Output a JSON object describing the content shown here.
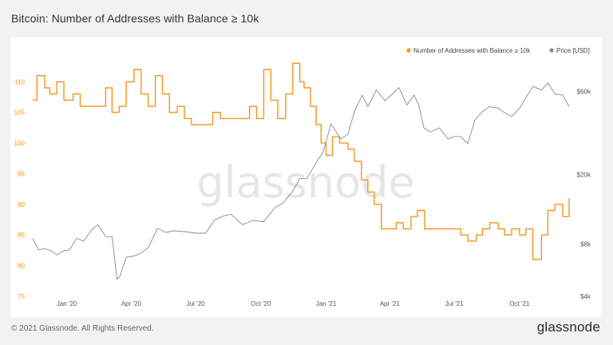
{
  "page": {
    "title": "Bitcoin: Number of Addresses with Balance ≥ 10k",
    "copyright": "© 2021 Glassnode. All Rights Reserved.",
    "logo": "glassnode",
    "watermark": "glassnode"
  },
  "chart_data": {
    "type": "line",
    "title": "Bitcoin: Number of Addresses with Balance ≥ 10k",
    "x_ticks": [
      "Jan '20",
      "Apr '20",
      "Jul '20",
      "Oct '20",
      "Jan '21",
      "Apr '21",
      "Jul '21",
      "Oct '21"
    ],
    "x_tick_dates": [
      "2020-01-01",
      "2020-04-01",
      "2020-07-01",
      "2020-10-01",
      "2021-01-01",
      "2021-04-01",
      "2021-07-01",
      "2021-10-01"
    ],
    "x_range": [
      "2019-11-14",
      "2021-12-10"
    ],
    "y_left": {
      "ticks": [
        "75",
        "80",
        "85",
        "90",
        "95",
        "100",
        "105",
        "110"
      ],
      "range": [
        75,
        112
      ],
      "color": "#f7931a"
    },
    "y_right": {
      "ticks": [
        "$4k",
        "$8k",
        "$20k",
        "$60k"
      ],
      "tick_values": [
        4000,
        8000,
        20000,
        60000
      ],
      "scale": "log",
      "range": [
        4000,
        80000
      ],
      "color": "#555555"
    },
    "grid": false,
    "legend_position": "top-right",
    "series": [
      {
        "name": "Number of Addresses with Balance ≥ 10k",
        "color": "#f7931a",
        "axis": "left",
        "step": true,
        "x": [
          "2019-11-14",
          "2019-11-20",
          "2019-12-01",
          "2019-12-08",
          "2019-12-18",
          "2019-12-28",
          "2020-01-10",
          "2020-01-20",
          "2020-02-01",
          "2020-02-15",
          "2020-02-25",
          "2020-03-05",
          "2020-03-15",
          "2020-03-25",
          "2020-04-05",
          "2020-04-15",
          "2020-04-25",
          "2020-05-05",
          "2020-05-15",
          "2020-05-25",
          "2020-06-05",
          "2020-06-15",
          "2020-06-25",
          "2020-07-05",
          "2020-07-15",
          "2020-07-25",
          "2020-08-05",
          "2020-08-15",
          "2020-08-25",
          "2020-09-05",
          "2020-09-15",
          "2020-09-25",
          "2020-10-05",
          "2020-10-15",
          "2020-10-25",
          "2020-11-05",
          "2020-11-15",
          "2020-11-25",
          "2020-12-01",
          "2020-12-10",
          "2020-12-18",
          "2020-12-25",
          "2021-01-01",
          "2021-01-10",
          "2021-01-20",
          "2021-02-01",
          "2021-02-10",
          "2021-02-20",
          "2021-03-01",
          "2021-03-10",
          "2021-03-20",
          "2021-04-01",
          "2021-04-10",
          "2021-04-20",
          "2021-05-01",
          "2021-05-10",
          "2021-05-20",
          "2021-06-01",
          "2021-06-10",
          "2021-06-20",
          "2021-07-01",
          "2021-07-10",
          "2021-07-20",
          "2021-08-01",
          "2021-08-10",
          "2021-08-20",
          "2021-09-01",
          "2021-09-10",
          "2021-09-20",
          "2021-10-01",
          "2021-10-10",
          "2021-10-20",
          "2021-11-01",
          "2021-11-10",
          "2021-11-20",
          "2021-12-01",
          "2021-12-10"
        ],
        "values": [
          107,
          111,
          109,
          108,
          110,
          107,
          108,
          106,
          106,
          106,
          109,
          105,
          106,
          110,
          112,
          108,
          106,
          111,
          108,
          105,
          106,
          104,
          103,
          103,
          103,
          105,
          104,
          104,
          104,
          104,
          106,
          104,
          112,
          107,
          104,
          108,
          113,
          110,
          109,
          106,
          103,
          100,
          98,
          101,
          100,
          99,
          97,
          94,
          92,
          90,
          86,
          86,
          87,
          86,
          88,
          89,
          86,
          86,
          86,
          86,
          86,
          85,
          84,
          85,
          86,
          87,
          86,
          85,
          86,
          85,
          86,
          81,
          85,
          89,
          90,
          88,
          91
        ]
      },
      {
        "name": "Price [USD]",
        "color": "#8a8a8a",
        "axis": "right",
        "x": [
          "2019-11-14",
          "2019-11-22",
          "2019-12-01",
          "2019-12-10",
          "2019-12-18",
          "2019-12-28",
          "2020-01-05",
          "2020-01-15",
          "2020-01-25",
          "2020-02-05",
          "2020-02-14",
          "2020-02-25",
          "2020-03-05",
          "2020-03-12",
          "2020-03-16",
          "2020-03-25",
          "2020-04-05",
          "2020-04-15",
          "2020-04-25",
          "2020-05-08",
          "2020-05-20",
          "2020-06-01",
          "2020-06-15",
          "2020-07-01",
          "2020-07-15",
          "2020-07-28",
          "2020-08-10",
          "2020-08-20",
          "2020-09-05",
          "2020-09-20",
          "2020-10-05",
          "2020-10-21",
          "2020-11-01",
          "2020-11-15",
          "2020-11-25",
          "2020-12-05",
          "2020-12-17",
          "2020-12-28",
          "2021-01-08",
          "2021-01-22",
          "2021-02-01",
          "2021-02-10",
          "2021-02-21",
          "2021-03-01",
          "2021-03-13",
          "2021-03-25",
          "2021-04-05",
          "2021-04-14",
          "2021-04-25",
          "2021-05-05",
          "2021-05-12",
          "2021-05-19",
          "2021-05-28",
          "2021-06-10",
          "2021-06-22",
          "2021-07-01",
          "2021-07-10",
          "2021-07-20",
          "2021-07-30",
          "2021-08-10",
          "2021-08-20",
          "2021-09-01",
          "2021-09-07",
          "2021-09-20",
          "2021-10-01",
          "2021-10-10",
          "2021-10-20",
          "2021-11-01",
          "2021-11-10",
          "2021-11-20",
          "2021-12-01",
          "2021-12-10"
        ],
        "values": [
          8600,
          7400,
          7500,
          7300,
          6900,
          7300,
          7400,
          8600,
          8300,
          9600,
          10300,
          8800,
          8800,
          5000,
          5200,
          6700,
          6800,
          7100,
          7600,
          9800,
          9300,
          9500,
          9400,
          9200,
          9200,
          11000,
          11600,
          11800,
          10300,
          10900,
          10700,
          12900,
          13700,
          16000,
          19000,
          19000,
          23000,
          27000,
          39000,
          32000,
          34000,
          46000,
          57000,
          49000,
          61000,
          53000,
          58000,
          63000,
          50000,
          57000,
          50000,
          37000,
          35000,
          37000,
          32000,
          33000,
          33000,
          30000,
          41000,
          46000,
          49000,
          48000,
          46000,
          43000,
          48000,
          55000,
          64000,
          61000,
          67000,
          58000,
          57000,
          49000
        ]
      }
    ]
  }
}
